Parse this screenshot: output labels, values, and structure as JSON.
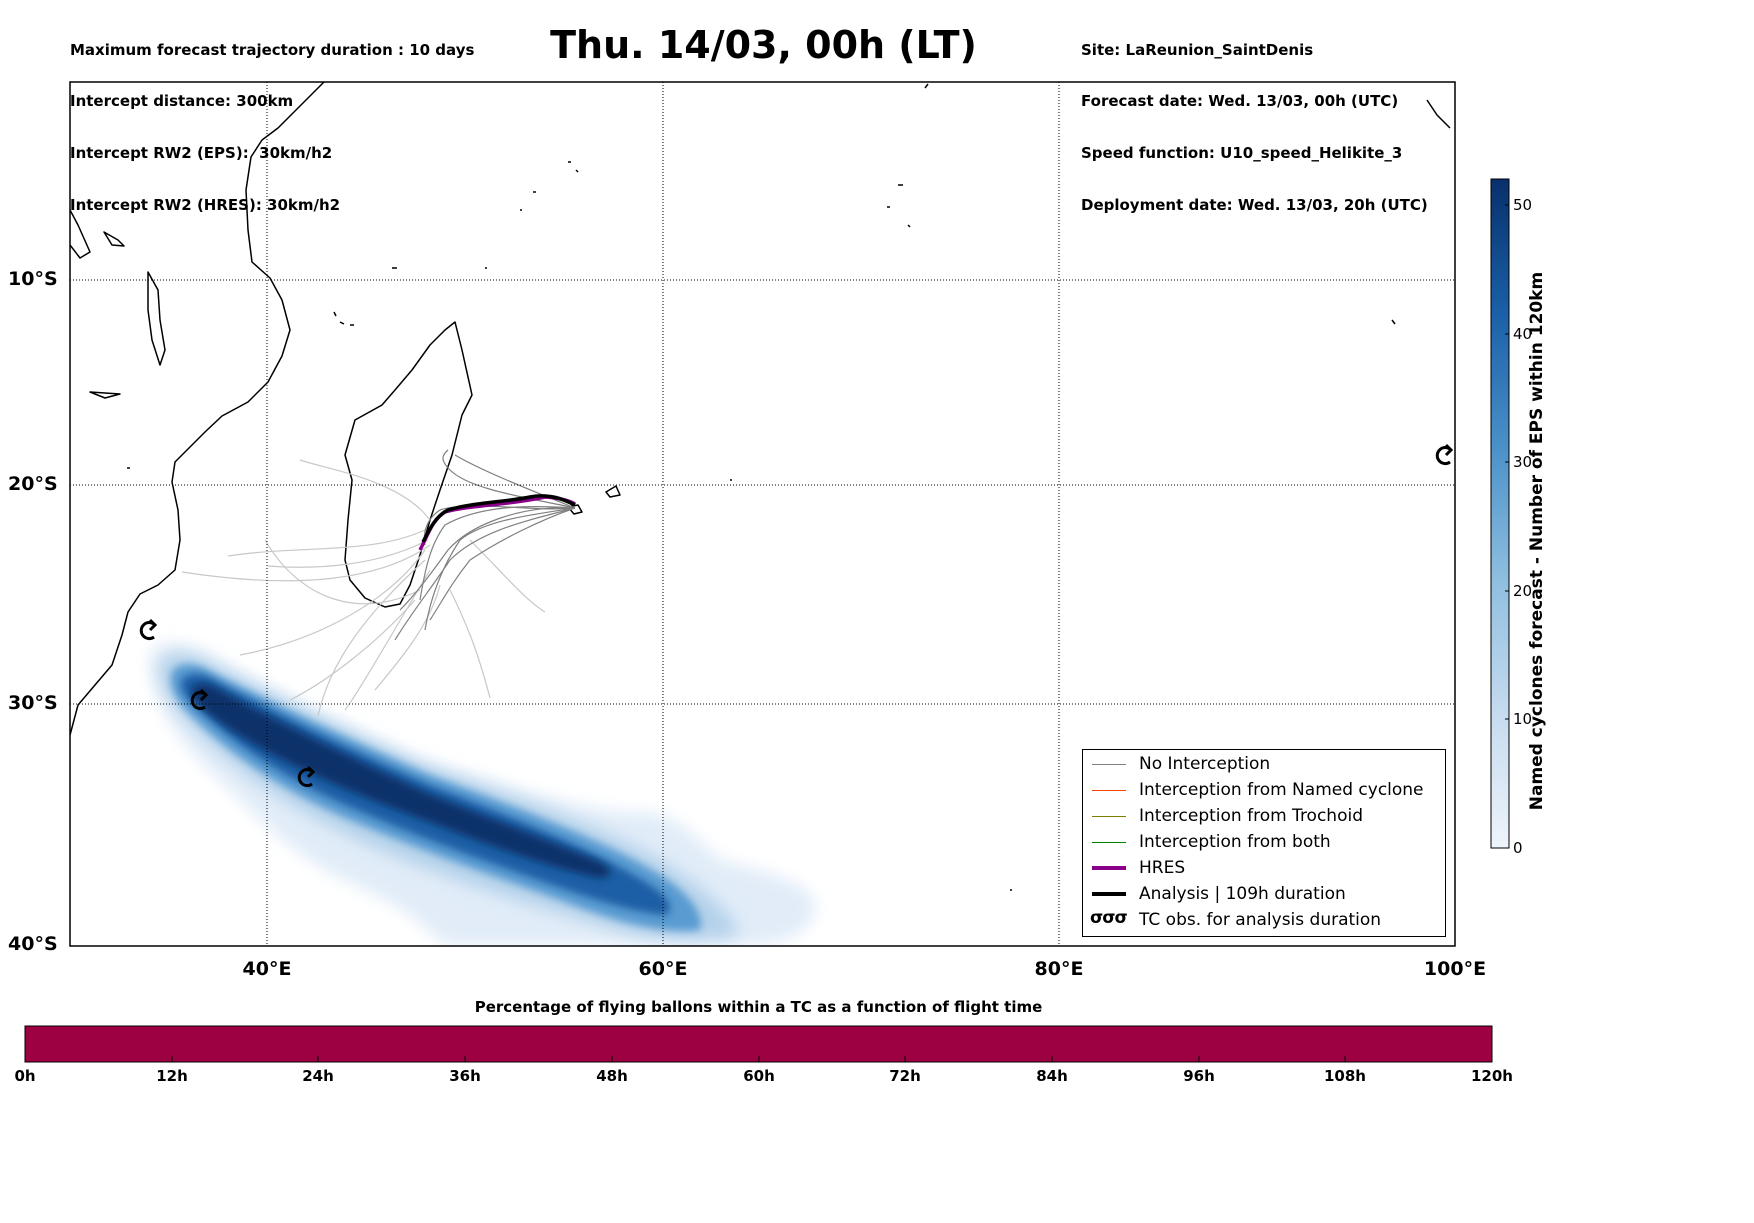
{
  "header": {
    "left_lines": [
      "Maximum forecast trajectory duration : 10 days",
      "Intercept distance: 300km",
      "Intercept RW2 (EPS):  30km/h2",
      "Intercept RW2 (HRES): 30km/h2"
    ],
    "title": "Thu. 14/03, 00h (LT)",
    "right_lines": [
      "Site: LaReunion_SaintDenis",
      "Forecast date: Wed. 13/03, 00h (UTC)",
      "Speed function: U10_speed_Helikite_3",
      "Deployment date: Wed. 13/03, 20h (UTC)"
    ]
  },
  "map": {
    "lon_range": [
      30,
      100
    ],
    "lat_range": [
      -40,
      0
    ],
    "lat_labels": [
      "10°S",
      "20°S",
      "30°S",
      "40°S"
    ],
    "lon_labels": [
      "40°E",
      "60°E",
      "80°E",
      "100°E"
    ],
    "gridlines": "dotted",
    "colors": {
      "no_interception": "#808080",
      "named_cyclone": "#ff4500",
      "trochoid": "#808000",
      "both": "#008000",
      "hres": "#8b008b",
      "analysis": "#000000",
      "density_low": "#e3eef9",
      "density_high": "#08306b"
    }
  },
  "legend": {
    "items": [
      {
        "label": "No Interception",
        "color": "#808080",
        "style": "thin"
      },
      {
        "label": "Interception from Named cyclone",
        "color": "#ff4500",
        "style": "thin"
      },
      {
        "label": "Interception from Trochoid",
        "color": "#808000",
        "style": "thin"
      },
      {
        "label": "Interception from both",
        "color": "#008000",
        "style": "thin"
      },
      {
        "label": "HRES",
        "color": "#8b008b",
        "style": "thick"
      },
      {
        "label": "Analysis | 109h duration",
        "color": "#000000",
        "style": "thick"
      },
      {
        "label": "TC obs. for analysis duration",
        "symbol": "σσσ",
        "style": "symbol"
      }
    ]
  },
  "colorbar": {
    "title": "Named cyclones forecast - Number of EPS within 120km",
    "ticks": [
      "0",
      "10",
      "20",
      "30",
      "40",
      "50"
    ],
    "range": [
      0,
      52
    ]
  },
  "bottom_bar": {
    "title": "Percentage of flying ballons within a TC as a function of flight time",
    "color": "#9e0142",
    "ticks": [
      "0h",
      "12h",
      "24h",
      "36h",
      "48h",
      "60h",
      "72h",
      "84h",
      "96h",
      "108h",
      "120h"
    ]
  }
}
